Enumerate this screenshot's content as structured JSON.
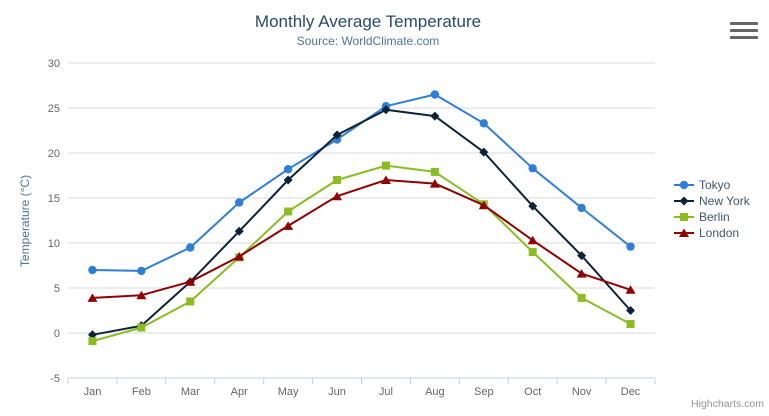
{
  "chart": {
    "title": "Monthly Average Temperature",
    "subtitle": "Source: WorldClimate.com",
    "y_axis_title": "Temperature (°C)",
    "credit": "Highcharts.com",
    "context_menu_icon": "hamburger-icon"
  },
  "chart_data": {
    "type": "line",
    "title": "Monthly Average Temperature",
    "subtitle": "Source: WorldClimate.com",
    "xlabel": "",
    "ylabel": "Temperature (°C)",
    "categories": [
      "Jan",
      "Feb",
      "Mar",
      "Apr",
      "May",
      "Jun",
      "Jul",
      "Aug",
      "Sep",
      "Oct",
      "Nov",
      "Dec"
    ],
    "series": [
      {
        "name": "Tokyo",
        "color": "#2f7ed8",
        "marker": "circle",
        "values": [
          7.0,
          6.9,
          9.5,
          14.5,
          18.2,
          21.5,
          25.2,
          26.5,
          23.3,
          18.3,
          13.9,
          9.6
        ]
      },
      {
        "name": "New York",
        "color": "#0d233a",
        "marker": "diamond",
        "values": [
          -0.2,
          0.8,
          5.7,
          11.3,
          17.0,
          22.0,
          24.8,
          24.1,
          20.1,
          14.1,
          8.6,
          2.5
        ]
      },
      {
        "name": "Berlin",
        "color": "#8bbc21",
        "marker": "square",
        "values": [
          -0.9,
          0.6,
          3.5,
          8.4,
          13.5,
          17.0,
          18.6,
          17.9,
          14.3,
          9.0,
          3.9,
          1.0
        ]
      },
      {
        "name": "London",
        "color": "#910000",
        "marker": "triangle",
        "values": [
          3.9,
          4.2,
          5.7,
          8.5,
          11.9,
          15.2,
          17.0,
          16.6,
          14.2,
          10.3,
          6.6,
          4.8
        ]
      }
    ],
    "ylim": [
      -5,
      30
    ],
    "ytick_step": 5,
    "grid": true,
    "legend_position": "right"
  },
  "colors": {
    "title": "#274b6d",
    "subtitle": "#4d759e",
    "axis_label": "#666666",
    "grid": "#d8d8d8",
    "axis_line": "#c0d0e0",
    "legend_text": "#3e576f",
    "credit": "#969696",
    "menu_icon": "#666666"
  }
}
